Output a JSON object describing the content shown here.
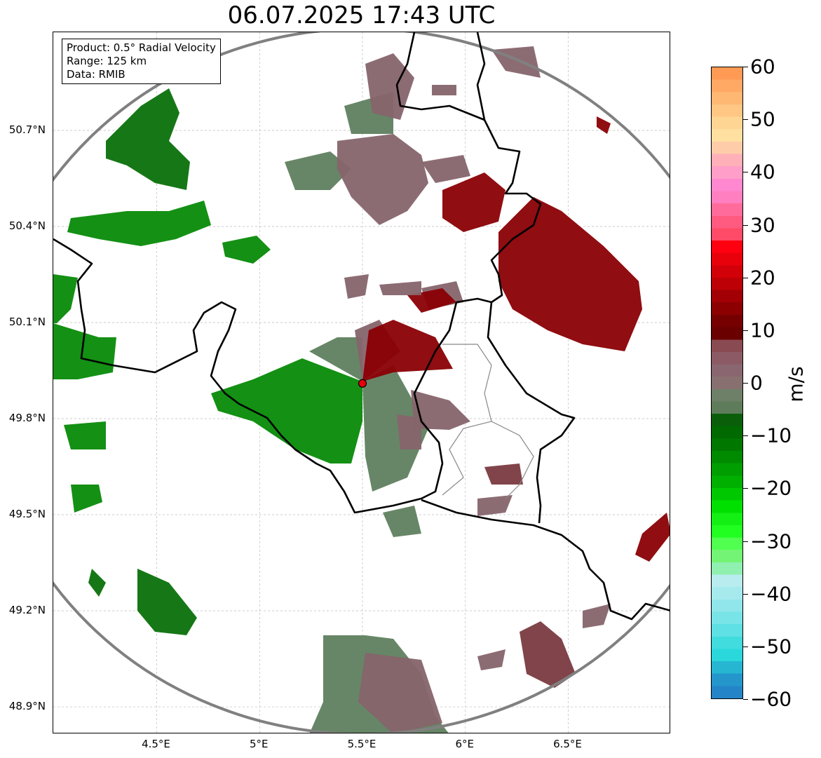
{
  "title": "06.07.2025 17:43 UTC",
  "info_box": {
    "product": "Product: 0.5° Radial Velocity",
    "range": "Range: 125 km",
    "data": "Data: RMIB"
  },
  "axes": {
    "lat_labels": [
      "50.7°N",
      "50.4°N",
      "50.1°N",
      "49.8°N",
      "49.5°N",
      "49.2°N",
      "48.9°N"
    ],
    "lat_values": [
      50.7,
      50.4,
      50.1,
      49.8,
      49.5,
      49.2,
      48.9
    ],
    "lon_labels": [
      "4.5°E",
      "5°E",
      "5.5°E",
      "6°E",
      "6.5°E"
    ],
    "lon_values": [
      4.5,
      5.0,
      5.5,
      6.0,
      6.5
    ]
  },
  "radar_site": {
    "lat": 49.91,
    "lon": 5.5,
    "marker_color": "#e8000b"
  },
  "colorbar": {
    "unit": "m/s",
    "min": -60,
    "max": 60,
    "tick_values": [
      60,
      50,
      40,
      30,
      20,
      10,
      0,
      -10,
      -20,
      -30,
      -40,
      -50,
      -60
    ],
    "tick_labels": [
      "60",
      "50",
      "40",
      "30",
      "20",
      "10",
      "0",
      "−10",
      "−20",
      "−30",
      "−40",
      "−50",
      "−60"
    ],
    "colors_top_to_bottom": [
      "#ff9a55",
      "#ffa965",
      "#ffb874",
      "#ffc684",
      "#ffd594",
      "#ffe0a0",
      "#ffccaa",
      "#ffb0b8",
      "#ff9ec8",
      "#ff88d0",
      "#ff7fc0",
      "#ff6b9a",
      "#ff5a80",
      "#ff4a68",
      "#ff0010",
      "#e8000a",
      "#d20008",
      "#bc0006",
      "#a20004",
      "#8c0002",
      "#760000",
      "#6a0000",
      "#8a4a52",
      "#8c5a64",
      "#8a6670",
      "#887070",
      "#6e8068",
      "#5e7c5a",
      "#0a5e0a",
      "#006a00",
      "#007800",
      "#008a00",
      "#009e00",
      "#00b000",
      "#00c800",
      "#00e000",
      "#14f014",
      "#20ff20",
      "#50ff50",
      "#74f474",
      "#90f0b0",
      "#b8ecee",
      "#a6eaee",
      "#90e6ea",
      "#78e4e8",
      "#5ee0e4",
      "#40dcde",
      "#2ad8dc",
      "#26b6d2",
      "#2496cc",
      "#2484c8"
    ]
  }
}
